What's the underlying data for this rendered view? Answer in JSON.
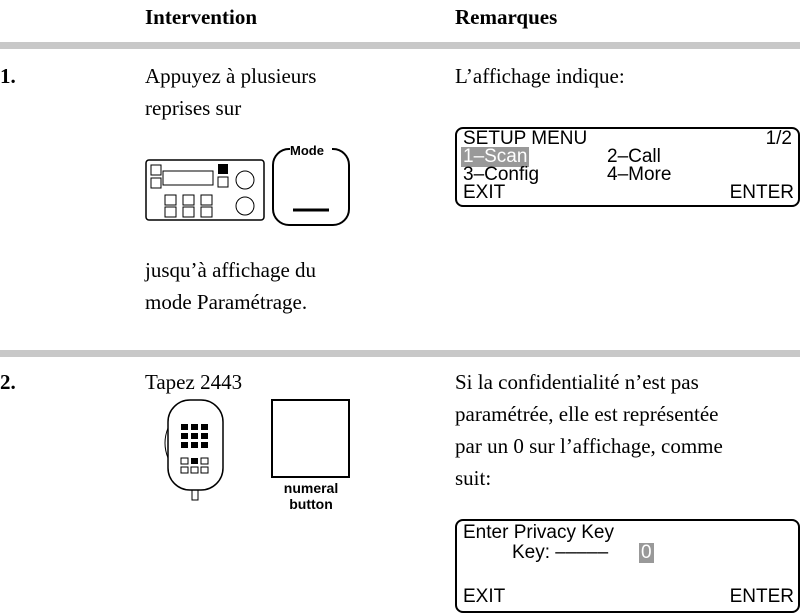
{
  "header": {
    "columns": [
      "Intervention",
      "Remarques"
    ]
  },
  "steps": [
    {
      "number": "1.",
      "intervention": {
        "lines": [
          "Appuyez à plusieurs",
          "reprises sur"
        ],
        "button_label": "Mode",
        "after_lines": [
          "jusqu’à affichage du",
          "mode Paramétrage."
        ]
      },
      "remarks": {
        "lines": [
          "L’affichage indique:"
        ],
        "display": {
          "title": "SETUP MENU",
          "page": "1/2",
          "items": [
            "1–Scan",
            "2–Call",
            "3–Config",
            "4–More"
          ],
          "left_key": "EXIT",
          "right_key": "ENTER"
        }
      }
    },
    {
      "number": "2.",
      "intervention": {
        "lines": [
          "Tapez 2443"
        ],
        "button_label": "numeral button"
      },
      "remarks": {
        "lines": [
          "Si la confidentialité n’est pas",
          "paramétrée, elle est représentée",
          "par un 0 sur l’affichage, comme",
          "suit:"
        ],
        "display": {
          "title": "Enter Privacy Key",
          "key_label": "Key: –––––",
          "key_value": "0",
          "left_key": "EXIT",
          "right_key": "ENTER"
        }
      }
    }
  ]
}
